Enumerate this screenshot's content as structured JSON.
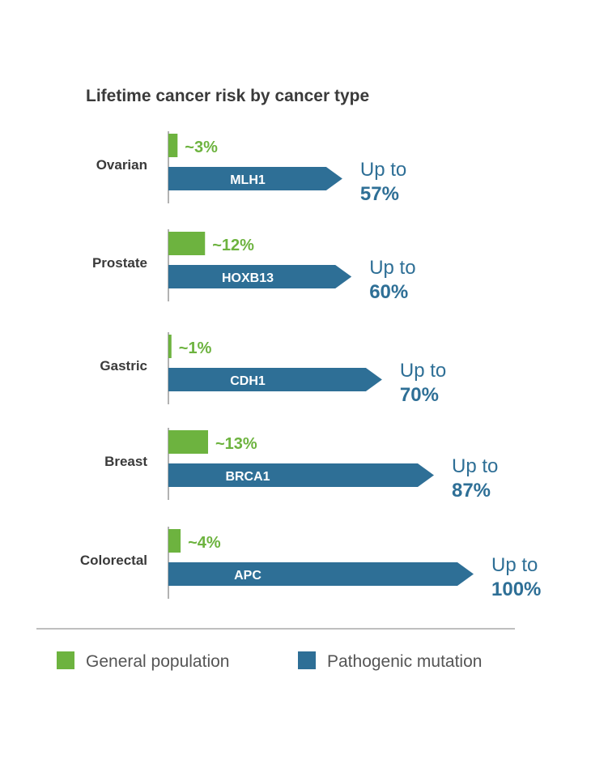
{
  "colors": {
    "general": "#6db33f",
    "mutation": "#2e6f96",
    "axis": "#999999",
    "divider": "#aaaaaa",
    "text": "#3a3a3a"
  },
  "chart_data": {
    "type": "bar",
    "title": "Lifetime cancer risk by cancer type",
    "categories": [
      "Ovarian",
      "Prostate",
      "Gastric",
      "Breast",
      "Colorectal"
    ],
    "series": [
      {
        "name": "General population",
        "values": [
          3,
          12,
          1,
          13,
          4
        ],
        "labels": [
          "~3%",
          "~12%",
          "~1%",
          "~13%",
          "~4%"
        ]
      },
      {
        "name": "Pathogenic mutation",
        "values": [
          57,
          60,
          70,
          87,
          100
        ],
        "genes": [
          "MLH1",
          "HOXB13",
          "CDH1",
          "BRCA1",
          "APC"
        ],
        "prefix": "Up to",
        "labels": [
          "57%",
          "60%",
          "70%",
          "87%",
          "100%"
        ]
      }
    ],
    "ylim": [
      0,
      100
    ],
    "legend_position": "bottom"
  }
}
